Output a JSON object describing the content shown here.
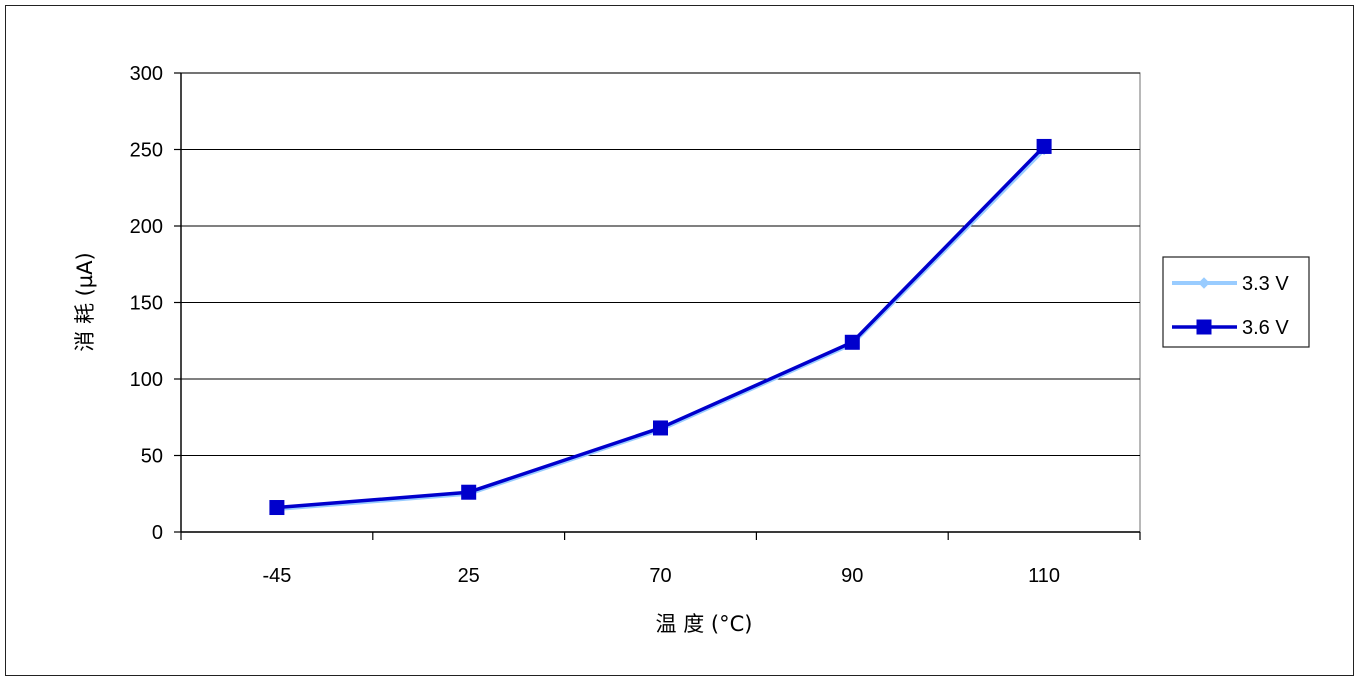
{
  "chart_data": {
    "type": "line",
    "title": "",
    "xlabel": "温 度 (°C)",
    "ylabel": "消 耗 (µA)",
    "categories": [
      "-45",
      "25",
      "70",
      "90",
      "110"
    ],
    "ylim": [
      0,
      300
    ],
    "yticks": [
      "0",
      "50",
      "100",
      "150",
      "200",
      "250",
      "300"
    ],
    "grid": true,
    "legend_position": "right",
    "series": [
      {
        "name": "3.3 V",
        "values": [
          15,
          25,
          67,
          123,
          250
        ],
        "color": "#99ccff",
        "marker": "diamond"
      },
      {
        "name": "3.6 V",
        "values": [
          16,
          26,
          68,
          124,
          252
        ],
        "color": "#0000cc",
        "marker": "square"
      }
    ]
  }
}
